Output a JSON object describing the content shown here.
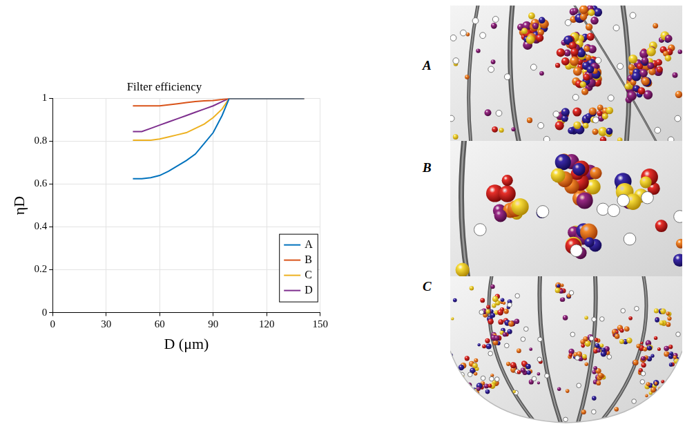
{
  "chart_data": {
    "type": "line",
    "title": "Filter efficiency",
    "x_label": "D (μm)",
    "y_label": "ηD",
    "x": [
      45,
      50,
      55,
      60,
      65,
      70,
      75,
      80,
      85,
      90,
      95,
      99,
      105,
      120,
      141
    ],
    "series": [
      {
        "name": "A",
        "color": "#0072bd",
        "values": [
          0.625,
          0.625,
          0.63,
          0.64,
          0.66,
          0.685,
          0.71,
          0.74,
          0.79,
          0.84,
          0.92,
          1,
          1,
          1,
          1
        ]
      },
      {
        "name": "B",
        "color": "#d95319",
        "values": [
          0.965,
          0.965,
          0.965,
          0.965,
          0.97,
          0.975,
          0.98,
          0.985,
          0.988,
          0.99,
          0.995,
          1,
          1,
          1,
          1
        ]
      },
      {
        "name": "C",
        "color": "#edb120",
        "values": [
          0.805,
          0.805,
          0.805,
          0.81,
          0.82,
          0.83,
          0.84,
          0.86,
          0.88,
          0.91,
          0.95,
          1,
          1,
          1,
          1
        ]
      },
      {
        "name": "D",
        "color": "#7e2f8e",
        "values": [
          0.845,
          0.845,
          0.86,
          0.875,
          0.89,
          0.905,
          0.92,
          0.935,
          0.95,
          0.965,
          0.985,
          1,
          1,
          1,
          1
        ]
      }
    ],
    "xlim": [
      0,
      150
    ],
    "xticks": [
      0,
      30,
      60,
      90,
      120,
      150
    ],
    "ylim": [
      0,
      1
    ],
    "yticks": [
      0,
      0.2,
      0.4,
      0.6,
      0.8,
      1
    ],
    "grid": true,
    "legend": "lower right"
  },
  "panels": [
    {
      "label": "A"
    },
    {
      "label": "B"
    },
    {
      "label": "C"
    }
  ]
}
